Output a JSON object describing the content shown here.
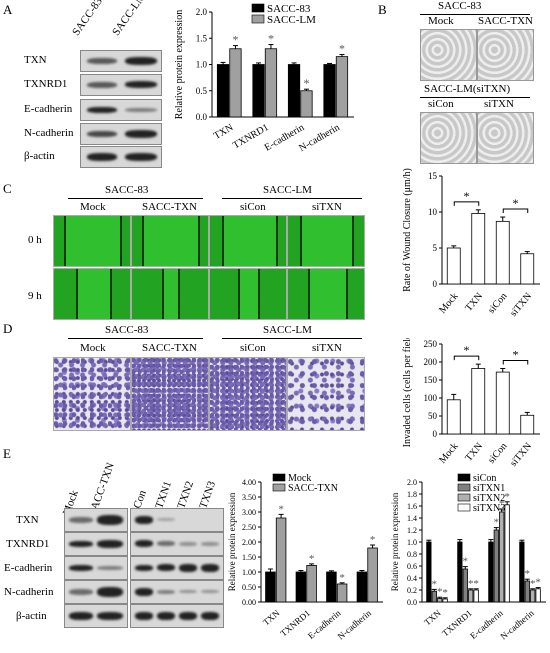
{
  "panel_letters": {
    "a": "A",
    "b": "B",
    "c": "C",
    "d": "D",
    "e": "E"
  },
  "panel_a": {
    "lane_labels": [
      "SACC-83",
      "SACC-LM"
    ],
    "rows": [
      "TXN",
      "TXNRD1",
      "E-cadherin",
      "N-cadherin",
      "β-actin"
    ]
  },
  "panel_b": {
    "top_title": "SACC-83",
    "top_labels": [
      "Mock",
      "SACC-TXN"
    ],
    "bottom_title": "SACC-LM(siTXN)",
    "bottom_labels": [
      "siCon",
      "siTXN"
    ]
  },
  "panel_c": {
    "group1": "SACC-83",
    "group2": "SACC-LM",
    "cols": [
      "Mock",
      "SACC-TXN",
      "siCon",
      "siTXN"
    ],
    "rows": [
      "0 h",
      "9 h"
    ]
  },
  "panel_d": {
    "group1": "SACC-83",
    "group2": "SACC-LM",
    "cols": [
      "Mock",
      "SACC-TXN",
      "siCon",
      "siTXN"
    ]
  },
  "panel_e": {
    "lanes_left": [
      "Mock",
      "SACC-TXN"
    ],
    "lanes_right": [
      "siCon",
      "siTXN1",
      "siTXN2",
      "siTXN3"
    ],
    "rows": [
      "TXN",
      "TXNRD1",
      "E-cadherin",
      "N-cadherin",
      "β-actin"
    ]
  },
  "chart_data": [
    {
      "id": "chartA",
      "type": "bar",
      "categories": [
        "TXN",
        "TXNRD1",
        "E-cadherin",
        "N-cadherin"
      ],
      "series": [
        {
          "name": "SACC-83",
          "values": [
            1.0,
            1.0,
            1.0,
            1.0
          ],
          "errors": [
            0.04,
            0.03,
            0.03,
            0.02
          ],
          "color": "#000000"
        },
        {
          "name": "SACC-LM",
          "values": [
            1.3,
            1.3,
            0.5,
            1.15
          ],
          "errors": [
            0.06,
            0.08,
            0.03,
            0.04
          ],
          "color": "#a0a0a0"
        }
      ],
      "significance": [
        [
          false,
          true
        ],
        [
          false,
          true
        ],
        [
          false,
          true
        ],
        [
          false,
          true
        ]
      ],
      "ylabel": "Relative protein expression",
      "ylim": [
        0,
        2.0
      ],
      "yticks": [
        "0.0",
        "0.5",
        "1.0",
        "1.5",
        "2.0"
      ],
      "legend_position": "top-right"
    },
    {
      "id": "chartC",
      "type": "bar",
      "categories": [
        "Mock",
        "TXN",
        "siCon",
        "siTXN"
      ],
      "series": [
        {
          "name": "",
          "values": [
            5,
            9.8,
            8.7,
            4.2
          ],
          "errors": [
            0.3,
            0.5,
            0.6,
            0.3
          ],
          "color": "#ffffff"
        }
      ],
      "brackets": [
        [
          0,
          1
        ],
        [
          2,
          3
        ]
      ],
      "ylabel": "Rate of Wound Closure (μm/h)",
      "ylim": [
        0,
        15
      ],
      "yticks": [
        "0",
        "5",
        "10",
        "15"
      ]
    },
    {
      "id": "chartD",
      "type": "bar",
      "categories": [
        "Mock",
        "TXN",
        "siCon",
        "siTXN"
      ],
      "series": [
        {
          "name": "",
          "values": [
            95,
            182,
            172,
            52
          ],
          "errors": [
            15,
            12,
            10,
            8
          ],
          "color": "#ffffff"
        }
      ],
      "brackets": [
        [
          0,
          1
        ],
        [
          2,
          3
        ]
      ],
      "ylabel": "Invaded cells (cells per field)",
      "ylim": [
        0,
        250
      ],
      "yticks": [
        "0",
        "50",
        "100",
        "150",
        "200",
        "250"
      ]
    },
    {
      "id": "chartE1",
      "type": "bar",
      "categories": [
        "TXN",
        "TXNRD1",
        "E-cadherin",
        "N-cadherin"
      ],
      "series": [
        {
          "name": "Mock",
          "values": [
            1.0,
            1.0,
            1.0,
            1.0
          ],
          "errors": [
            0.1,
            0.05,
            0.04,
            0.05
          ],
          "color": "#000000"
        },
        {
          "name": "SACC-TXN",
          "values": [
            2.8,
            1.22,
            0.6,
            1.8
          ],
          "errors": [
            0.12,
            0.05,
            0.04,
            0.1
          ],
          "color": "#a0a0a0"
        }
      ],
      "significance": [
        [
          false,
          true
        ],
        [
          false,
          true
        ],
        [
          false,
          true
        ],
        [
          false,
          true
        ]
      ],
      "ylabel": "Relative protein expression",
      "ylim": [
        0,
        4.0
      ],
      "yticks": [
        "0.00",
        "0.50",
        "1.00",
        "1.50",
        "2.00",
        "2.50",
        "3.00",
        "3.50",
        "4.00"
      ],
      "legend_position": "top-right"
    },
    {
      "id": "chartE2",
      "type": "bar",
      "categories": [
        "TXN",
        "TXNRD1",
        "E-cadherin",
        "N-cadherin"
      ],
      "series": [
        {
          "name": "siCon",
          "values": [
            1.0,
            1.0,
            1.0,
            1.0
          ],
          "errors": [
            0.03,
            0.04,
            0.04,
            0.03
          ],
          "color": "#000000"
        },
        {
          "name": "siTXN1",
          "values": [
            0.18,
            0.55,
            1.2,
            0.35
          ],
          "errors": [
            0.03,
            0.04,
            0.04,
            0.03
          ],
          "color": "#808080"
        },
        {
          "name": "siTXN2",
          "values": [
            0.06,
            0.2,
            1.5,
            0.2
          ],
          "errors": [
            0.02,
            0.02,
            0.05,
            0.02
          ],
          "color": "#b0b0b0"
        },
        {
          "name": "siTXN3",
          "values": [
            0.05,
            0.2,
            1.62,
            0.22
          ],
          "errors": [
            0.02,
            0.02,
            0.05,
            0.02
          ],
          "color": "#ffffff"
        }
      ],
      "significance": [
        [
          false,
          true,
          true,
          true
        ],
        [
          false,
          true,
          true,
          true
        ],
        [
          false,
          true,
          true,
          true
        ],
        [
          false,
          true,
          true,
          true
        ]
      ],
      "ylabel": "Relative protein expression",
      "ylim": [
        0,
        2.0
      ],
      "yticks": [
        "0.0",
        "0.2",
        "0.4",
        "0.6",
        "0.8",
        "1.0",
        "1.2",
        "1.4",
        "1.6",
        "1.8",
        "2.0"
      ],
      "legend_position": "top-right"
    }
  ]
}
